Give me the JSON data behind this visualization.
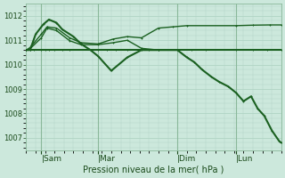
{
  "bg_color": "#cce8dc",
  "grid_color": "#b0d4c4",
  "line_color": "#1a6020",
  "xlabel": "Pression niveau de la mer( hPa )",
  "ylim": [
    1006.5,
    1012.5
  ],
  "yticks": [
    1007,
    1008,
    1009,
    1010,
    1011,
    1012
  ],
  "day_labels": [
    "|Sam",
    "|Mar",
    "|Dim",
    "|Lun"
  ],
  "day_positions": [
    16,
    76,
    160,
    222
  ],
  "xlim": [
    0,
    270
  ],
  "series": [
    {
      "x": [
        0,
        4,
        8,
        16,
        20,
        24,
        30,
        38,
        46,
        76,
        85,
        95,
        107,
        118,
        130,
        140,
        160,
        175,
        190,
        222,
        240,
        255,
        270
      ],
      "y": [
        1010.6,
        1010.6,
        1010.6,
        1010.6,
        1010.6,
        1010.6,
        1010.6,
        1010.6,
        1010.6,
        1010.6,
        1010.6,
        1010.6,
        1010.6,
        1010.6,
        1010.6,
        1010.6,
        1010.6,
        1010.6,
        1010.6,
        1010.6,
        1010.6,
        1010.6,
        1010.6
      ],
      "lw": 1.5,
      "ms": 2.0
    },
    {
      "x": [
        0,
        4,
        16,
        22,
        32,
        46,
        58,
        76,
        92,
        107,
        122,
        140,
        155,
        170,
        222,
        240,
        258,
        270
      ],
      "y": [
        1010.6,
        1010.7,
        1011.25,
        1011.55,
        1011.5,
        1011.1,
        1010.9,
        1010.85,
        1011.05,
        1011.15,
        1011.1,
        1011.5,
        1011.55,
        1011.6,
        1011.6,
        1011.62,
        1011.63,
        1011.63
      ],
      "lw": 1.0,
      "ms": 2.0
    },
    {
      "x": [
        0,
        4,
        16,
        22,
        32,
        46,
        58,
        76,
        92,
        107,
        122,
        140
      ],
      "y": [
        1010.6,
        1010.65,
        1011.1,
        1011.5,
        1011.4,
        1010.98,
        1010.82,
        1010.82,
        1010.9,
        1011.0,
        1010.67,
        1010.6
      ],
      "lw": 1.0,
      "ms": 2.0
    },
    {
      "x": [
        0,
        4,
        10,
        18,
        24,
        32,
        38,
        50,
        58,
        68,
        76,
        90,
        107,
        122,
        140,
        160,
        170,
        178,
        186,
        196,
        204,
        214,
        222,
        230,
        238,
        245,
        252,
        260,
        268,
        270
      ],
      "y": [
        1010.6,
        1010.6,
        1011.25,
        1011.65,
        1011.85,
        1011.72,
        1011.45,
        1011.15,
        1010.85,
        1010.6,
        1010.35,
        1009.75,
        1010.3,
        1010.6,
        1010.6,
        1010.6,
        1010.3,
        1010.1,
        1009.8,
        1009.5,
        1009.3,
        1009.1,
        1008.85,
        1008.5,
        1008.7,
        1008.2,
        1007.9,
        1007.3,
        1006.85,
        1006.8
      ],
      "lw": 1.5,
      "ms": 2.0
    }
  ]
}
